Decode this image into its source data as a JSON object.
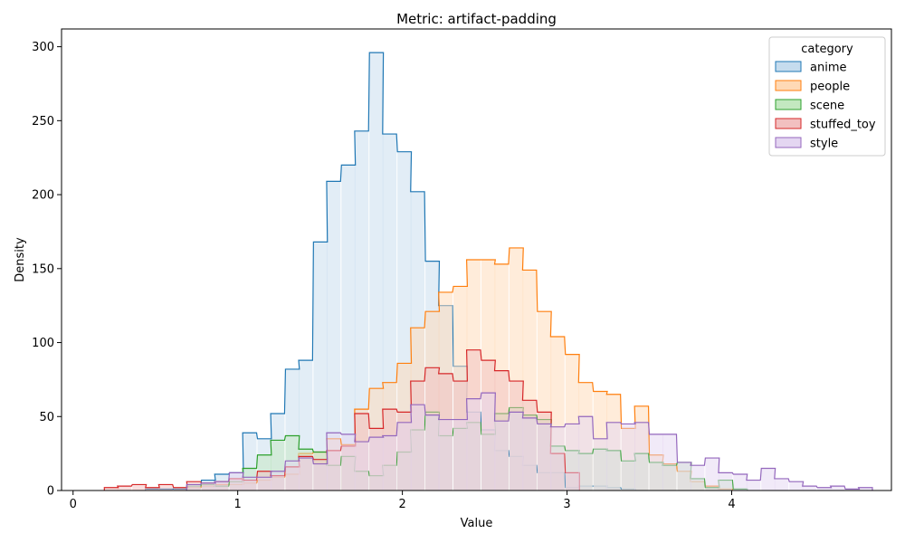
{
  "chart_data": {
    "type": "histogram",
    "title": "Metric: artifact-padding",
    "xlabel": "Value",
    "ylabel": "Density",
    "xlim": [
      -0.07,
      4.97
    ],
    "ylim": [
      0,
      312
    ],
    "xticks": [
      0,
      1,
      2,
      3,
      4
    ],
    "yticks": [
      0,
      50,
      100,
      150,
      200,
      250,
      300
    ],
    "grid": false,
    "bin_width": 0.0845,
    "legend": {
      "title": "category",
      "placement": "top-right",
      "entries": [
        "anime",
        "people",
        "scene",
        "stuffed_toy",
        "style"
      ]
    },
    "series": [
      {
        "name": "anime",
        "color": "#1f77b4",
        "fill": "#c6dcee",
        "bins": [
          [
            0.44,
            1
          ],
          [
            0.52,
            1
          ],
          [
            0.61,
            1
          ],
          [
            0.69,
            2
          ],
          [
            0.78,
            7
          ],
          [
            0.86,
            11
          ],
          [
            0.95,
            12
          ],
          [
            1.03,
            39
          ],
          [
            1.12,
            35
          ],
          [
            1.2,
            52
          ],
          [
            1.29,
            82
          ],
          [
            1.37,
            88
          ],
          [
            1.46,
            168
          ],
          [
            1.54,
            209
          ],
          [
            1.63,
            220
          ],
          [
            1.71,
            243
          ],
          [
            1.8,
            296
          ],
          [
            1.88,
            241
          ],
          [
            1.97,
            229
          ],
          [
            2.05,
            202
          ],
          [
            2.14,
            155
          ],
          [
            2.22,
            125
          ],
          [
            2.31,
            84
          ],
          [
            2.39,
            53
          ],
          [
            2.48,
            41
          ],
          [
            2.56,
            27
          ],
          [
            2.65,
            23
          ],
          [
            2.73,
            17
          ],
          [
            2.82,
            12
          ],
          [
            2.9,
            12
          ],
          [
            2.99,
            2
          ],
          [
            3.07,
            3
          ],
          [
            3.16,
            3
          ],
          [
            3.24,
            2
          ],
          [
            3.33,
            1
          ]
        ]
      },
      {
        "name": "people",
        "color": "#ff7f0e",
        "fill": "#ffd9b5",
        "bins": [
          [
            0.69,
            2
          ],
          [
            0.78,
            3
          ],
          [
            0.86,
            4
          ],
          [
            0.95,
            4
          ],
          [
            1.03,
            5
          ],
          [
            1.12,
            7
          ],
          [
            1.2,
            9
          ],
          [
            1.29,
            11
          ],
          [
            1.37,
            25
          ],
          [
            1.46,
            26
          ],
          [
            1.54,
            35
          ],
          [
            1.63,
            31
          ],
          [
            1.71,
            55
          ],
          [
            1.8,
            69
          ],
          [
            1.88,
            73
          ],
          [
            1.97,
            86
          ],
          [
            2.05,
            110
          ],
          [
            2.14,
            121
          ],
          [
            2.22,
            134
          ],
          [
            2.31,
            138
          ],
          [
            2.39,
            156
          ],
          [
            2.48,
            156
          ],
          [
            2.56,
            153
          ],
          [
            2.65,
            164
          ],
          [
            2.73,
            149
          ],
          [
            2.82,
            121
          ],
          [
            2.9,
            104
          ],
          [
            2.99,
            92
          ],
          [
            3.07,
            73
          ],
          [
            3.16,
            67
          ],
          [
            3.24,
            65
          ],
          [
            3.33,
            42
          ],
          [
            3.41,
            57
          ],
          [
            3.5,
            24
          ],
          [
            3.58,
            18
          ],
          [
            3.67,
            13
          ],
          [
            3.75,
            6
          ],
          [
            3.84,
            3
          ],
          [
            3.92,
            1
          ]
        ]
      },
      {
        "name": "scene",
        "color": "#2ca02c",
        "fill": "#c3e8c0",
        "bins": [
          [
            0.69,
            3
          ],
          [
            0.78,
            4
          ],
          [
            0.86,
            3
          ],
          [
            0.95,
            6
          ],
          [
            1.03,
            15
          ],
          [
            1.12,
            24
          ],
          [
            1.2,
            34
          ],
          [
            1.29,
            37
          ],
          [
            1.37,
            28
          ],
          [
            1.46,
            26
          ],
          [
            1.54,
            17
          ],
          [
            1.63,
            23
          ],
          [
            1.71,
            13
          ],
          [
            1.8,
            10
          ],
          [
            1.88,
            17
          ],
          [
            1.97,
            26
          ],
          [
            2.05,
            41
          ],
          [
            2.14,
            53
          ],
          [
            2.22,
            37
          ],
          [
            2.31,
            42
          ],
          [
            2.39,
            46
          ],
          [
            2.48,
            38
          ],
          [
            2.56,
            52
          ],
          [
            2.65,
            56
          ],
          [
            2.73,
            51
          ],
          [
            2.82,
            48
          ],
          [
            2.9,
            30
          ],
          [
            2.99,
            27
          ],
          [
            3.07,
            25
          ],
          [
            3.16,
            28
          ],
          [
            3.24,
            27
          ],
          [
            3.33,
            20
          ],
          [
            3.41,
            25
          ],
          [
            3.5,
            19
          ],
          [
            3.58,
            17
          ],
          [
            3.67,
            19
          ],
          [
            3.75,
            8
          ],
          [
            3.84,
            2
          ],
          [
            3.92,
            7
          ],
          [
            4.01,
            1
          ]
        ]
      },
      {
        "name": "stuffed_toy",
        "color": "#d62728",
        "fill": "#f2c0c0",
        "bins": [
          [
            0.19,
            2
          ],
          [
            0.27,
            3
          ],
          [
            0.36,
            4
          ],
          [
            0.44,
            2
          ],
          [
            0.52,
            4
          ],
          [
            0.61,
            2
          ],
          [
            0.69,
            6
          ],
          [
            0.78,
            5
          ],
          [
            0.86,
            6
          ],
          [
            0.95,
            8
          ],
          [
            1.03,
            7
          ],
          [
            1.12,
            13
          ],
          [
            1.2,
            10
          ],
          [
            1.29,
            16
          ],
          [
            1.37,
            23
          ],
          [
            1.46,
            21
          ],
          [
            1.54,
            27
          ],
          [
            1.63,
            30
          ],
          [
            1.71,
            52
          ],
          [
            1.8,
            42
          ],
          [
            1.88,
            55
          ],
          [
            1.97,
            53
          ],
          [
            2.05,
            74
          ],
          [
            2.14,
            83
          ],
          [
            2.22,
            79
          ],
          [
            2.31,
            74
          ],
          [
            2.39,
            95
          ],
          [
            2.48,
            88
          ],
          [
            2.56,
            81
          ],
          [
            2.65,
            74
          ],
          [
            2.73,
            61
          ],
          [
            2.82,
            53
          ],
          [
            2.9,
            25
          ],
          [
            2.99,
            12
          ]
        ]
      },
      {
        "name": "style",
        "color": "#9467bd",
        "fill": "#e4d6f1",
        "bins": [
          [
            0.69,
            4
          ],
          [
            0.78,
            5
          ],
          [
            0.86,
            6
          ],
          [
            0.95,
            12
          ],
          [
            1.03,
            9
          ],
          [
            1.12,
            9
          ],
          [
            1.2,
            13
          ],
          [
            1.29,
            20
          ],
          [
            1.37,
            22
          ],
          [
            1.46,
            18
          ],
          [
            1.54,
            39
          ],
          [
            1.63,
            38
          ],
          [
            1.71,
            33
          ],
          [
            1.8,
            36
          ],
          [
            1.88,
            37
          ],
          [
            1.97,
            46
          ],
          [
            2.05,
            58
          ],
          [
            2.14,
            51
          ],
          [
            2.22,
            48
          ],
          [
            2.31,
            48
          ],
          [
            2.39,
            62
          ],
          [
            2.48,
            66
          ],
          [
            2.56,
            47
          ],
          [
            2.65,
            53
          ],
          [
            2.73,
            49
          ],
          [
            2.82,
            45
          ],
          [
            2.9,
            43
          ],
          [
            2.99,
            45
          ],
          [
            3.07,
            50
          ],
          [
            3.16,
            35
          ],
          [
            3.24,
            46
          ],
          [
            3.33,
            45
          ],
          [
            3.41,
            46
          ],
          [
            3.5,
            38
          ],
          [
            3.58,
            38
          ],
          [
            3.67,
            19
          ],
          [
            3.75,
            17
          ],
          [
            3.84,
            22
          ],
          [
            3.92,
            12
          ],
          [
            4.01,
            11
          ],
          [
            4.09,
            7
          ],
          [
            4.18,
            15
          ],
          [
            4.26,
            8
          ],
          [
            4.35,
            6
          ],
          [
            4.43,
            3
          ],
          [
            4.52,
            2
          ],
          [
            4.6,
            3
          ],
          [
            4.69,
            1
          ],
          [
            4.77,
            2
          ]
        ]
      }
    ]
  }
}
